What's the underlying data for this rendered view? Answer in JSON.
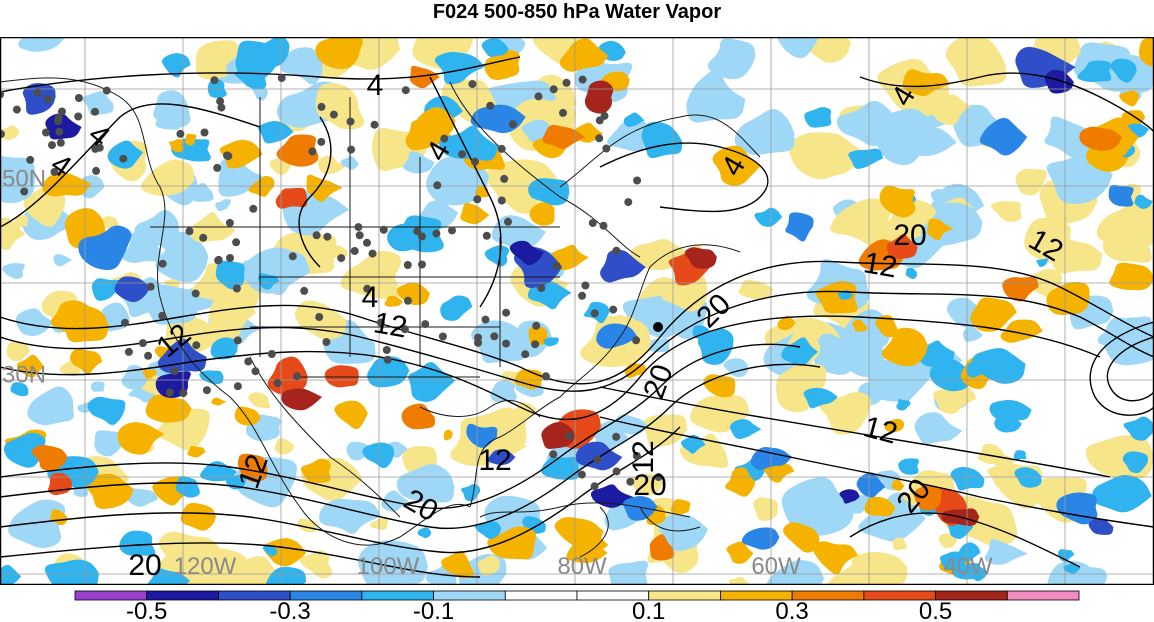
{
  "title": "F024 500-850 hPa Water Vapor",
  "lat_labels": [
    "50N",
    "30N"
  ],
  "lon_labels": [
    "120W",
    "100W",
    "80W",
    "60W",
    "40W"
  ],
  "contour_labels": [
    "4",
    "4",
    "4",
    "4",
    "4",
    "4",
    "4",
    "12",
    "12",
    "12",
    "12",
    "12",
    "12",
    "12",
    "12",
    "20",
    "20",
    "20",
    "20",
    "20",
    "20",
    "20"
  ],
  "colorbar": {
    "ticks": [
      "-0.5",
      "-0.3",
      "-0.1",
      "0.1",
      "0.3",
      "0.5"
    ],
    "colors": [
      "#9b3fd0",
      "#1c1aa0",
      "#2e4fc8",
      "#2a86e6",
      "#2fb4f0",
      "#9fd8f6",
      "#ffffff",
      "#ffffff",
      "#f7e58a",
      "#f5b300",
      "#ef7b00",
      "#e64a19",
      "#a5241c",
      "#f08cc0"
    ]
  },
  "colors": {
    "contour": "#000000",
    "borders": "#1a1a1a",
    "station": "#4d4d4d",
    "grid": "#9a9a9a",
    "axis_label": "#8a8a8a"
  }
}
